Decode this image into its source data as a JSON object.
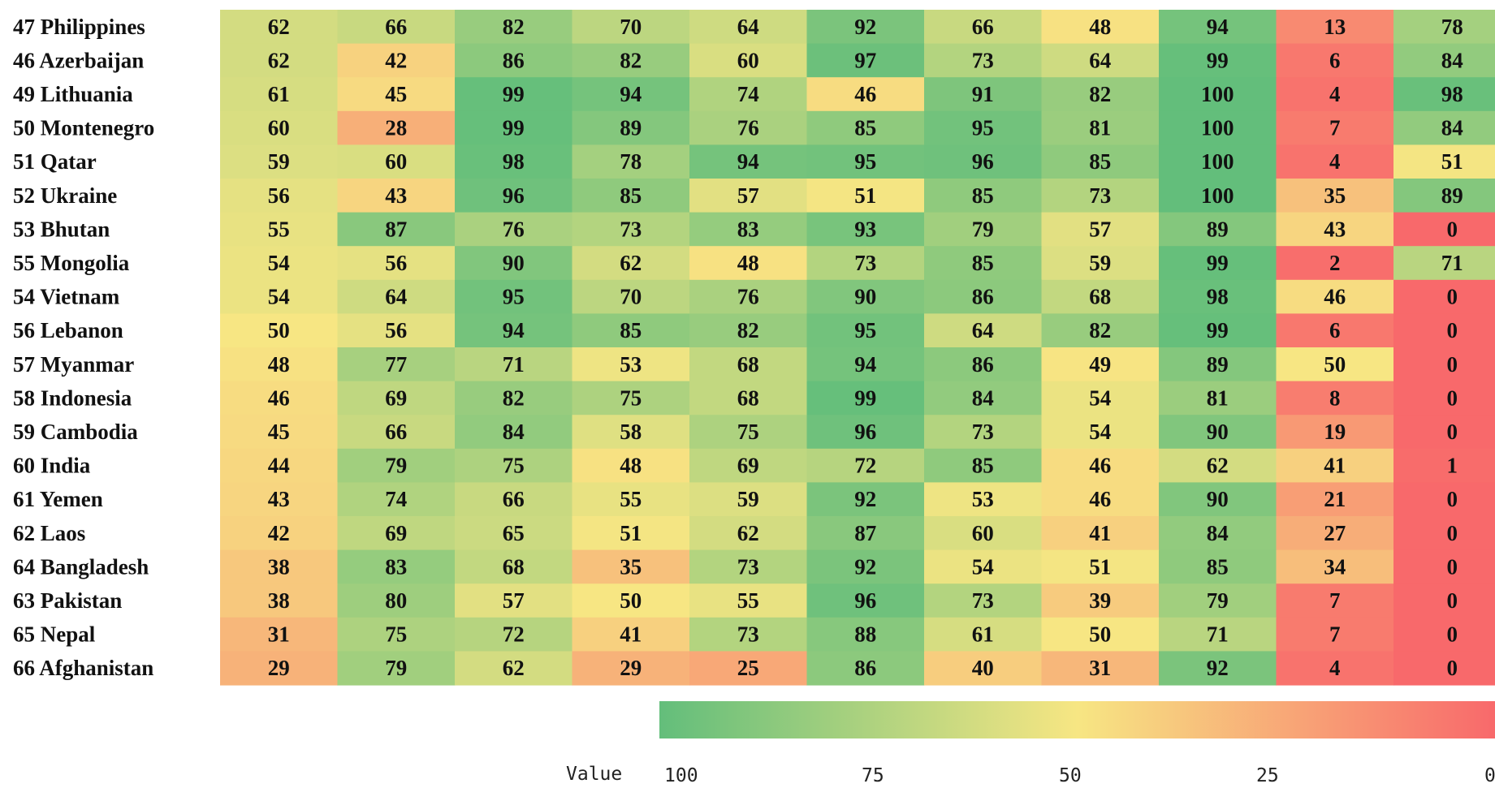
{
  "chart_data": {
    "type": "heatmap",
    "title": "",
    "xlabel": "",
    "ylabel": "",
    "row_labels": [
      "47 Philippines",
      "46 Azerbaijan",
      "49 Lithuania",
      "50 Montenegro",
      "51 Qatar",
      "52 Ukraine",
      "53 Bhutan",
      "55 Mongolia",
      "54 Vietnam",
      "56 Lebanon",
      "57 Myanmar",
      "58 Indonesia",
      "59 Cambodia",
      "60 India",
      "61 Yemen",
      "62 Laos",
      "64 Bangladesh",
      "63 Pakistan",
      "65 Nepal",
      "66 Afghanistan"
    ],
    "values": [
      [
        62,
        66,
        82,
        70,
        64,
        92,
        66,
        48,
        94,
        13,
        78
      ],
      [
        62,
        42,
        86,
        82,
        60,
        97,
        73,
        64,
        99,
        6,
        84
      ],
      [
        61,
        45,
        99,
        94,
        74,
        46,
        91,
        82,
        100,
        4,
        98
      ],
      [
        60,
        28,
        99,
        89,
        76,
        85,
        95,
        81,
        100,
        7,
        84
      ],
      [
        59,
        60,
        98,
        78,
        94,
        95,
        96,
        85,
        100,
        4,
        51
      ],
      [
        56,
        43,
        96,
        85,
        57,
        51,
        85,
        73,
        100,
        35,
        89
      ],
      [
        55,
        87,
        76,
        73,
        83,
        93,
        79,
        57,
        89,
        43,
        0
      ],
      [
        54,
        56,
        90,
        62,
        48,
        73,
        85,
        59,
        99,
        2,
        71
      ],
      [
        54,
        64,
        95,
        70,
        76,
        90,
        86,
        68,
        98,
        46,
        0
      ],
      [
        50,
        56,
        94,
        85,
        82,
        95,
        64,
        82,
        99,
        6,
        0
      ],
      [
        48,
        77,
        71,
        53,
        68,
        94,
        86,
        49,
        89,
        50,
        0
      ],
      [
        46,
        69,
        82,
        75,
        68,
        99,
        84,
        54,
        81,
        8,
        0
      ],
      [
        45,
        66,
        84,
        58,
        75,
        96,
        73,
        54,
        90,
        19,
        0
      ],
      [
        44,
        79,
        75,
        48,
        69,
        72,
        85,
        46,
        62,
        41,
        1
      ],
      [
        43,
        74,
        66,
        55,
        59,
        92,
        53,
        46,
        90,
        21,
        0
      ],
      [
        42,
        69,
        65,
        51,
        62,
        87,
        60,
        41,
        84,
        27,
        0
      ],
      [
        38,
        83,
        68,
        35,
        73,
        92,
        54,
        51,
        85,
        34,
        0
      ],
      [
        38,
        80,
        57,
        50,
        55,
        96,
        73,
        39,
        79,
        7,
        0
      ],
      [
        31,
        75,
        72,
        41,
        73,
        88,
        61,
        50,
        71,
        7,
        0
      ],
      [
        29,
        79,
        62,
        29,
        25,
        86,
        40,
        31,
        92,
        4,
        0
      ]
    ],
    "legend": {
      "title": "Value",
      "ticks": [
        "100",
        "75",
        "50",
        "25",
        "0"
      ],
      "range": [
        100,
        0
      ]
    },
    "colors": {
      "high": "#63be7b",
      "mid": "#f7e683",
      "low": "#f8696b"
    }
  }
}
